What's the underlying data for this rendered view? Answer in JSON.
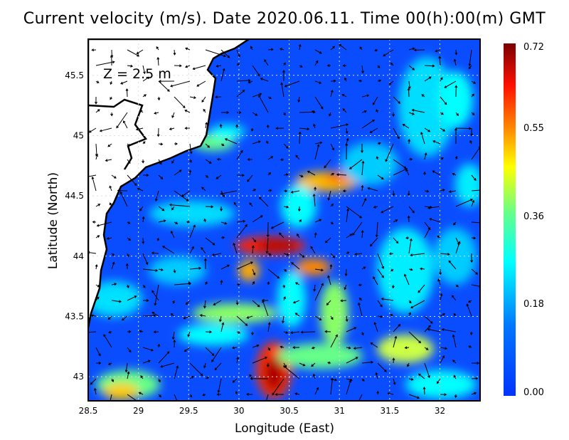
{
  "title": "Current velocity (m/s). Date 2020.06.11. Time 00(h):00(m) GMT",
  "depth_label": "Z = 2.5 m",
  "chart_data": {
    "type": "heatmap",
    "title": "Current velocity (m/s). Date 2020.06.11. Time 00(h):00(m) GMT",
    "xlabel": "Longitude (East)",
    "ylabel": "Latitude (North)",
    "xlim": [
      28.5,
      32.4
    ],
    "ylim": [
      42.8,
      45.8
    ],
    "xticks": [
      "28.5",
      "29",
      "29.5",
      "30",
      "30.5",
      "31",
      "31.5",
      "32"
    ],
    "yticks": [
      "43",
      "43.5",
      "44",
      "44.5",
      "45",
      "45.5"
    ],
    "grid": true,
    "colorbar": {
      "ticks": [
        "0.00",
        "0.18",
        "0.36",
        "0.55",
        "0.72"
      ],
      "range": [
        0,
        0.72
      ],
      "colors": [
        "#0033ff",
        "#0099ff",
        "#00ffff",
        "#66ff88",
        "#ffff00",
        "#ff8800",
        "#ff1100",
        "#7a0000"
      ]
    },
    "overlay": "velocity vectors (arrows)",
    "land_color": "#ffffff"
  }
}
